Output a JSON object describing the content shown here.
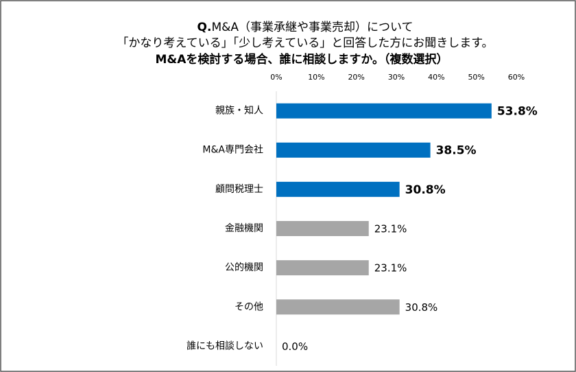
{
  "chart_data": {
    "type": "bar",
    "orientation": "horizontal",
    "title": {
      "prefix": "Q.",
      "line1": "M&A（事業承継や事業売却）について",
      "line2": "「かなり考えている」「少し考えている」と回答した方にお聞きします。",
      "line3": "M&Aを検討する場合、誰に相談しますか。（複数選択）"
    },
    "categories": [
      "親族・知人",
      "M&A専門会社",
      "顧問税理士",
      "金融機関",
      "公的機関",
      "その他",
      "誰にも相談しない"
    ],
    "values": [
      53.8,
      38.5,
      30.8,
      23.1,
      23.1,
      30.8,
      0.0
    ],
    "value_labels": [
      "53.8%",
      "38.5%",
      "30.8%",
      "23.1%",
      "23.1%",
      "30.8%",
      "0.0%"
    ],
    "colors": [
      "#0070c0",
      "#0070c0",
      "#0070c0",
      "#a6a6a6",
      "#a6a6a6",
      "#a6a6a6",
      "#a6a6a6"
    ],
    "label_bold": [
      true,
      true,
      true,
      false,
      false,
      false,
      false
    ],
    "xlim": [
      0,
      60
    ],
    "xticks": [
      {
        "value": 0,
        "label": "0%"
      },
      {
        "value": 10,
        "label": "10%"
      },
      {
        "value": 20,
        "label": "20%"
      },
      {
        "value": 30,
        "label": "30%"
      },
      {
        "value": 40,
        "label": "40%"
      },
      {
        "value": 50,
        "label": "50%"
      },
      {
        "value": 60,
        "label": "60%"
      }
    ],
    "grid": false
  }
}
